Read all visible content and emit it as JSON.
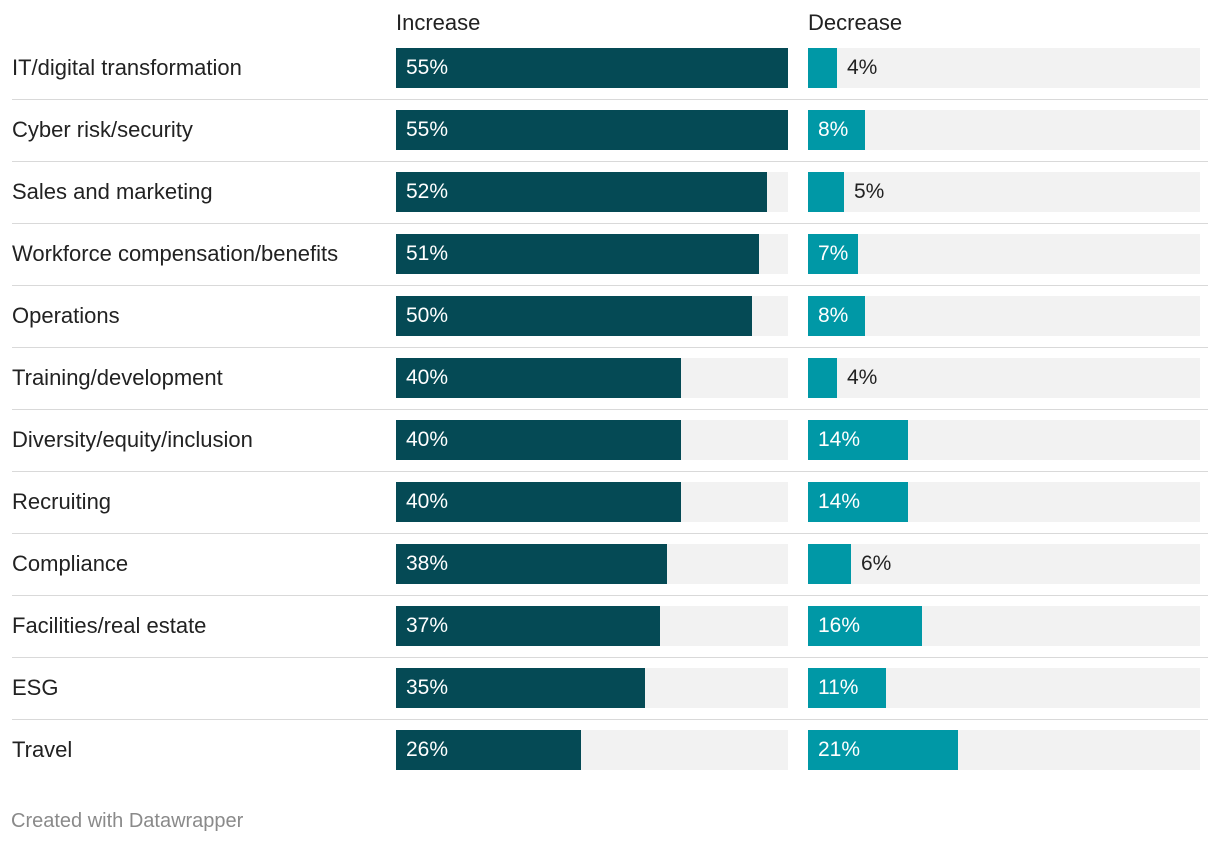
{
  "chart_data": {
    "type": "bar",
    "orientation": "horizontal",
    "xlim": [
      0,
      55
    ],
    "categories": [
      "IT/digital transformation",
      "Cyber risk/security",
      "Sales and marketing",
      "Workforce compensation/benefits",
      "Operations",
      "Training/development",
      "Diversity/equity/inclusion",
      "Recruiting",
      "Compliance",
      "Facilities/real estate",
      "ESG",
      "Travel"
    ],
    "series": [
      {
        "name": "Increase",
        "color": "#054a55",
        "values": [
          55,
          55,
          52,
          51,
          50,
          40,
          40,
          40,
          38,
          37,
          35,
          26
        ],
        "labels": [
          "55%",
          "55%",
          "52%",
          "51%",
          "50%",
          "40%",
          "40%",
          "40%",
          "38%",
          "37%",
          "35%",
          "26%"
        ]
      },
      {
        "name": "Decrease",
        "color": "#0098a6",
        "values": [
          4,
          8,
          5,
          7,
          8,
          4,
          14,
          14,
          6,
          16,
          11,
          21
        ],
        "labels": [
          "4%",
          "8%",
          "5%",
          "7%",
          "8%",
          "4%",
          "14%",
          "14%",
          "6%",
          "16%",
          "11%",
          "21%"
        ]
      }
    ]
  },
  "footer": "Created with Datawrapper",
  "colors": {
    "increase": "#054a55",
    "decrease": "#0098a6",
    "track": "#f2f2f2"
  }
}
